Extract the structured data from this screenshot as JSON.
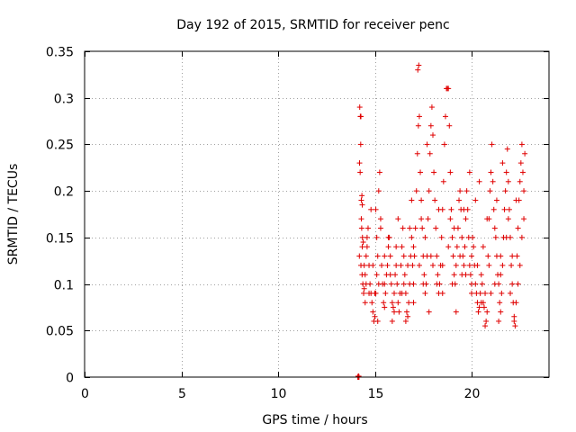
{
  "chart_data": {
    "type": "scatter",
    "title": "Day 192 of 2015, SRMTID for receiver penc",
    "xlabel": "GPS time / hours",
    "ylabel": "SRMTID / TECUs",
    "xlim": [
      0,
      24
    ],
    "ylim": [
      0,
      0.35
    ],
    "xticks": [
      0,
      5,
      10,
      15,
      20
    ],
    "yticks": [
      0,
      0.05,
      0.1,
      0.15,
      0.2,
      0.25,
      0.3,
      0.35
    ],
    "xtick_labels": [
      "0",
      "5",
      "10",
      "15",
      "20"
    ],
    "ytick_labels": [
      "0",
      "0.05",
      "0.1",
      "0.15",
      "0.2",
      "0.25",
      "0.3",
      "0.35"
    ],
    "grid": true,
    "marker": "+",
    "color": "#e00000",
    "series": [
      {
        "name": "SRMTID",
        "points": [
          [
            14.12,
            0.0
          ],
          [
            14.15,
            0.0
          ],
          [
            14.18,
            0.0
          ],
          [
            14.14,
            0.001
          ],
          [
            14.17,
            0.001
          ],
          [
            14.2,
            0.13
          ],
          [
            14.22,
            0.29
          ],
          [
            14.25,
            0.28
          ],
          [
            14.28,
            0.28
          ],
          [
            14.27,
            0.25
          ],
          [
            14.21,
            0.23
          ],
          [
            14.24,
            0.22
          ],
          [
            14.3,
            0.19
          ],
          [
            14.33,
            0.195
          ],
          [
            14.35,
            0.185
          ],
          [
            14.3,
            0.17
          ],
          [
            14.32,
            0.16
          ],
          [
            14.36,
            0.15
          ],
          [
            14.4,
            0.145
          ],
          [
            14.28,
            0.12
          ],
          [
            14.34,
            0.11
          ],
          [
            14.38,
            0.1
          ],
          [
            14.42,
            0.09
          ],
          [
            14.45,
            0.095
          ],
          [
            14.5,
            0.11
          ],
          [
            14.55,
            0.13
          ],
          [
            14.6,
            0.15
          ],
          [
            14.65,
            0.16
          ],
          [
            14.7,
            0.12
          ],
          [
            14.75,
            0.1
          ],
          [
            14.8,
            0.09
          ],
          [
            14.85,
            0.08
          ],
          [
            14.9,
            0.07
          ],
          [
            14.95,
            0.06
          ],
          [
            15.0,
            0.065
          ],
          [
            15.05,
            0.09
          ],
          [
            15.1,
            0.11
          ],
          [
            15.15,
            0.13
          ],
          [
            15.2,
            0.2
          ],
          [
            15.25,
            0.22
          ],
          [
            15.05,
            0.18
          ],
          [
            15.1,
            0.15
          ],
          [
            15.3,
            0.17
          ],
          [
            15.35,
            0.12
          ],
          [
            15.4,
            0.1
          ],
          [
            15.45,
            0.08
          ],
          [
            15.5,
            0.075
          ],
          [
            15.55,
            0.09
          ],
          [
            15.6,
            0.11
          ],
          [
            15.65,
            0.12
          ],
          [
            15.7,
            0.14
          ],
          [
            15.75,
            0.15
          ],
          [
            15.8,
            0.13
          ],
          [
            15.85,
            0.1
          ],
          [
            15.9,
            0.08
          ],
          [
            15.95,
            0.075
          ],
          [
            16.0,
            0.09
          ],
          [
            16.05,
            0.11
          ],
          [
            16.1,
            0.12
          ],
          [
            16.15,
            0.1
          ],
          [
            16.2,
            0.08
          ],
          [
            16.25,
            0.07
          ],
          [
            16.3,
            0.09
          ],
          [
            16.35,
            0.12
          ],
          [
            16.4,
            0.14
          ],
          [
            16.45,
            0.16
          ],
          [
            16.5,
            0.13
          ],
          [
            16.55,
            0.11
          ],
          [
            16.6,
            0.09
          ],
          [
            16.65,
            0.07
          ],
          [
            16.7,
            0.065
          ],
          [
            16.75,
            0.08
          ],
          [
            16.8,
            0.1
          ],
          [
            16.85,
            0.13
          ],
          [
            16.9,
            0.15
          ],
          [
            16.95,
            0.12
          ],
          [
            17.0,
            0.1
          ],
          [
            17.05,
            0.13
          ],
          [
            17.1,
            0.16
          ],
          [
            17.15,
            0.2
          ],
          [
            17.2,
            0.24
          ],
          [
            17.25,
            0.27
          ],
          [
            17.22,
            0.33
          ],
          [
            17.27,
            0.335
          ],
          [
            17.3,
            0.28
          ],
          [
            17.35,
            0.22
          ],
          [
            17.4,
            0.19
          ],
          [
            17.45,
            0.16
          ],
          [
            17.5,
            0.13
          ],
          [
            17.55,
            0.11
          ],
          [
            17.6,
            0.09
          ],
          [
            17.65,
            0.1
          ],
          [
            17.7,
            0.13
          ],
          [
            17.75,
            0.17
          ],
          [
            17.8,
            0.2
          ],
          [
            17.85,
            0.24
          ],
          [
            17.9,
            0.27
          ],
          [
            17.95,
            0.29
          ],
          [
            18.0,
            0.26
          ],
          [
            18.05,
            0.22
          ],
          [
            18.1,
            0.19
          ],
          [
            18.15,
            0.16
          ],
          [
            18.2,
            0.13
          ],
          [
            18.25,
            0.11
          ],
          [
            18.3,
            0.09
          ],
          [
            18.35,
            0.1
          ],
          [
            18.4,
            0.12
          ],
          [
            18.45,
            0.15
          ],
          [
            18.5,
            0.18
          ],
          [
            18.55,
            0.21
          ],
          [
            18.6,
            0.25
          ],
          [
            18.65,
            0.28
          ],
          [
            18.7,
            0.31
          ],
          [
            18.75,
            0.31
          ],
          [
            18.8,
            0.31
          ],
          [
            18.85,
            0.27
          ],
          [
            18.9,
            0.22
          ],
          [
            18.95,
            0.18
          ],
          [
            19.0,
            0.15
          ],
          [
            19.05,
            0.13
          ],
          [
            19.1,
            0.11
          ],
          [
            19.15,
            0.1
          ],
          [
            19.2,
            0.12
          ],
          [
            19.25,
            0.14
          ],
          [
            19.3,
            0.16
          ],
          [
            19.35,
            0.19
          ],
          [
            19.4,
            0.2
          ],
          [
            19.45,
            0.18
          ],
          [
            19.5,
            0.15
          ],
          [
            19.55,
            0.13
          ],
          [
            19.6,
            0.12
          ],
          [
            19.65,
            0.14
          ],
          [
            19.7,
            0.17
          ],
          [
            19.75,
            0.2
          ],
          [
            19.8,
            0.18
          ],
          [
            19.85,
            0.15
          ],
          [
            19.9,
            0.12
          ],
          [
            19.95,
            0.11
          ],
          [
            20.0,
            0.13
          ],
          [
            20.05,
            0.15
          ],
          [
            20.1,
            0.14
          ],
          [
            20.15,
            0.12
          ],
          [
            20.2,
            0.1
          ],
          [
            20.25,
            0.09
          ],
          [
            20.3,
            0.08
          ],
          [
            20.35,
            0.07
          ],
          [
            20.4,
            0.075
          ],
          [
            20.45,
            0.09
          ],
          [
            20.5,
            0.11
          ],
          [
            20.55,
            0.1
          ],
          [
            20.6,
            0.08
          ],
          [
            20.65,
            0.075
          ],
          [
            20.7,
            0.09
          ],
          [
            20.75,
            0.06
          ],
          [
            20.8,
            0.07
          ],
          [
            20.85,
            0.13
          ],
          [
            20.9,
            0.17
          ],
          [
            20.95,
            0.2
          ],
          [
            21.0,
            0.22
          ],
          [
            21.05,
            0.25
          ],
          [
            21.1,
            0.21
          ],
          [
            21.15,
            0.18
          ],
          [
            21.2,
            0.16
          ],
          [
            21.25,
            0.15
          ],
          [
            21.3,
            0.13
          ],
          [
            21.35,
            0.11
          ],
          [
            21.4,
            0.1
          ],
          [
            21.45,
            0.08
          ],
          [
            21.5,
            0.07
          ],
          [
            21.55,
            0.09
          ],
          [
            21.6,
            0.12
          ],
          [
            21.65,
            0.15
          ],
          [
            21.7,
            0.18
          ],
          [
            21.75,
            0.2
          ],
          [
            21.8,
            0.22
          ],
          [
            21.85,
            0.245
          ],
          [
            21.9,
            0.21
          ],
          [
            21.95,
            0.18
          ],
          [
            22.0,
            0.15
          ],
          [
            22.05,
            0.12
          ],
          [
            22.1,
            0.1
          ],
          [
            22.15,
            0.08
          ],
          [
            22.2,
            0.06
          ],
          [
            22.25,
            0.055
          ],
          [
            22.3,
            0.08
          ],
          [
            22.35,
            0.13
          ],
          [
            22.4,
            0.16
          ],
          [
            22.45,
            0.19
          ],
          [
            22.5,
            0.21
          ],
          [
            22.55,
            0.23
          ],
          [
            22.6,
            0.25
          ],
          [
            22.65,
            0.22
          ],
          [
            22.7,
            0.2
          ],
          [
            22.75,
            0.24
          ],
          [
            14.6,
            0.14
          ],
          [
            14.9,
            0.12
          ],
          [
            15.2,
            0.1
          ],
          [
            15.5,
            0.13
          ],
          [
            15.8,
            0.11
          ],
          [
            16.1,
            0.14
          ],
          [
            16.4,
            0.09
          ],
          [
            16.7,
            0.12
          ],
          [
            17.0,
            0.14
          ],
          [
            17.3,
            0.12
          ],
          [
            17.6,
            0.15
          ],
          [
            17.9,
            0.13
          ],
          [
            18.2,
            0.1
          ],
          [
            18.5,
            0.12
          ],
          [
            18.8,
            0.14
          ],
          [
            19.1,
            0.16
          ],
          [
            19.4,
            0.13
          ],
          [
            19.7,
            0.11
          ],
          [
            20.0,
            0.1
          ],
          [
            20.3,
            0.12
          ],
          [
            20.6,
            0.14
          ],
          [
            20.9,
            0.12
          ],
          [
            21.2,
            0.1
          ],
          [
            21.5,
            0.13
          ],
          [
            21.8,
            0.15
          ],
          [
            22.1,
            0.13
          ],
          [
            22.4,
            0.1
          ],
          [
            22.6,
            0.15
          ],
          [
            14.5,
            0.08
          ],
          [
            15.0,
            0.09
          ],
          [
            15.5,
            0.1
          ],
          [
            16.0,
            0.07
          ],
          [
            16.5,
            0.1
          ],
          [
            17.0,
            0.08
          ],
          [
            17.5,
            0.1
          ],
          [
            18.0,
            0.12
          ],
          [
            18.5,
            0.09
          ],
          [
            19.0,
            0.1
          ],
          [
            19.5,
            0.11
          ],
          [
            20.0,
            0.09
          ],
          [
            20.5,
            0.08
          ],
          [
            21.0,
            0.09
          ],
          [
            21.5,
            0.11
          ],
          [
            22.0,
            0.09
          ],
          [
            22.5,
            0.12
          ],
          [
            14.8,
            0.18
          ],
          [
            15.3,
            0.16
          ],
          [
            16.2,
            0.17
          ],
          [
            16.8,
            0.16
          ],
          [
            17.4,
            0.17
          ],
          [
            18.3,
            0.18
          ],
          [
            18.9,
            0.17
          ],
          [
            19.6,
            0.18
          ],
          [
            20.2,
            0.19
          ],
          [
            20.8,
            0.17
          ],
          [
            21.3,
            0.19
          ],
          [
            21.9,
            0.17
          ],
          [
            22.3,
            0.19
          ],
          [
            22.7,
            0.17
          ],
          [
            19.9,
            0.22
          ],
          [
            20.4,
            0.21
          ],
          [
            21.6,
            0.23
          ],
          [
            17.7,
            0.25
          ],
          [
            16.9,
            0.19
          ],
          [
            15.7,
            0.15
          ],
          [
            14.45,
            0.12
          ],
          [
            14.35,
            0.14
          ],
          [
            14.55,
            0.1
          ],
          [
            14.7,
            0.09
          ],
          [
            15.15,
            0.06
          ],
          [
            15.9,
            0.06
          ],
          [
            16.6,
            0.06
          ],
          [
            17.8,
            0.07
          ],
          [
            19.2,
            0.07
          ],
          [
            20.7,
            0.055
          ],
          [
            21.4,
            0.06
          ],
          [
            22.2,
            0.065
          ]
        ]
      }
    ]
  }
}
